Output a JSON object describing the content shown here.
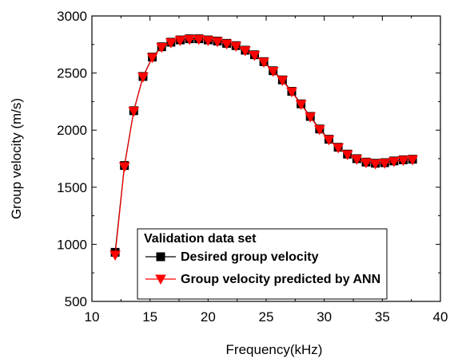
{
  "chart_data": {
    "type": "line",
    "title": "",
    "xlabel": "Frequency(kHz)",
    "ylabel": "Group velocity (m/s)",
    "xlim": [
      10,
      40
    ],
    "ylim": [
      500,
      3000
    ],
    "x_ticks": [
      10,
      15,
      20,
      25,
      30,
      35,
      40
    ],
    "y_ticks": [
      500,
      1000,
      1500,
      2000,
      2500,
      3000
    ],
    "grid": false,
    "legend": {
      "title": "Validation data set",
      "placement": "bottom-center"
    },
    "series": [
      {
        "name": "Desired group velocity",
        "color": "#000000",
        "marker": "square",
        "x": [
          12,
          12.8,
          13.6,
          14.4,
          15.2,
          16.0,
          16.8,
          17.6,
          18.4,
          19.2,
          20.0,
          20.8,
          21.6,
          22.4,
          23.2,
          24.0,
          24.8,
          25.6,
          26.4,
          27.2,
          28.0,
          28.8,
          29.6,
          30.4,
          31.2,
          32.0,
          32.8,
          33.6,
          34.4,
          35.2,
          36.0,
          36.8,
          37.6
        ],
        "y": [
          930,
          1690,
          2170,
          2470,
          2640,
          2730,
          2770,
          2790,
          2800,
          2800,
          2790,
          2780,
          2760,
          2740,
          2700,
          2660,
          2600,
          2520,
          2440,
          2340,
          2230,
          2120,
          2010,
          1920,
          1850,
          1790,
          1750,
          1720,
          1710,
          1715,
          1730,
          1740,
          1745
        ]
      },
      {
        "name": "Group velocity predicted by ANN",
        "color": "#ff0000",
        "marker": "triangle-down",
        "x": [
          12,
          12.8,
          13.6,
          14.4,
          15.2,
          16.0,
          16.8,
          17.6,
          18.4,
          19.2,
          20.0,
          20.8,
          21.6,
          22.4,
          23.2,
          24.0,
          24.8,
          25.6,
          26.4,
          27.2,
          28.0,
          28.8,
          29.6,
          30.4,
          31.2,
          32.0,
          32.8,
          33.6,
          34.4,
          35.2,
          36.0,
          36.8,
          37.6
        ],
        "y": [
          905,
          1680,
          2165,
          2465,
          2635,
          2725,
          2765,
          2785,
          2795,
          2795,
          2785,
          2775,
          2755,
          2735,
          2695,
          2655,
          2595,
          2515,
          2435,
          2335,
          2225,
          2115,
          2005,
          1915,
          1845,
          1785,
          1745,
          1715,
          1705,
          1710,
          1725,
          1735,
          1740
        ]
      }
    ]
  }
}
